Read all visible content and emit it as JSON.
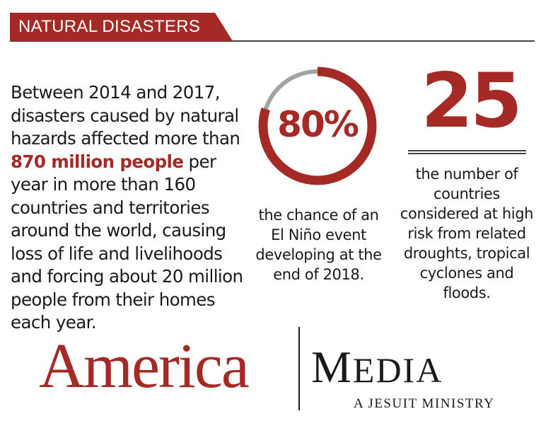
{
  "header": {
    "title": "NATURAL DISASTERS"
  },
  "body": {
    "before": "Between 2014 and 2017, disasters caused by natural hazards affected more than ",
    "highlight": "870 million people",
    "after": " per year in more than 160 countries and territories around the world, causing loss of life and livelihoods and forcing about 20 million people from their homes each year."
  },
  "stat_el_nino": {
    "value_label": "80%",
    "fraction": 0.8,
    "caption": "the chance of an El Niño event developing at the end of 2018."
  },
  "stat_countries": {
    "value": "25",
    "caption": "the number of countries considered at high risk from related droughts, tropical cyclones and floods."
  },
  "logo": {
    "america": "America",
    "media_initial": "M",
    "media_rest": "EDIA",
    "tagline": "A JESUIT MINISTRY"
  },
  "colors": {
    "accent": "#a52a26",
    "track": "#a3a3a3",
    "text": "#1a1a1a"
  }
}
